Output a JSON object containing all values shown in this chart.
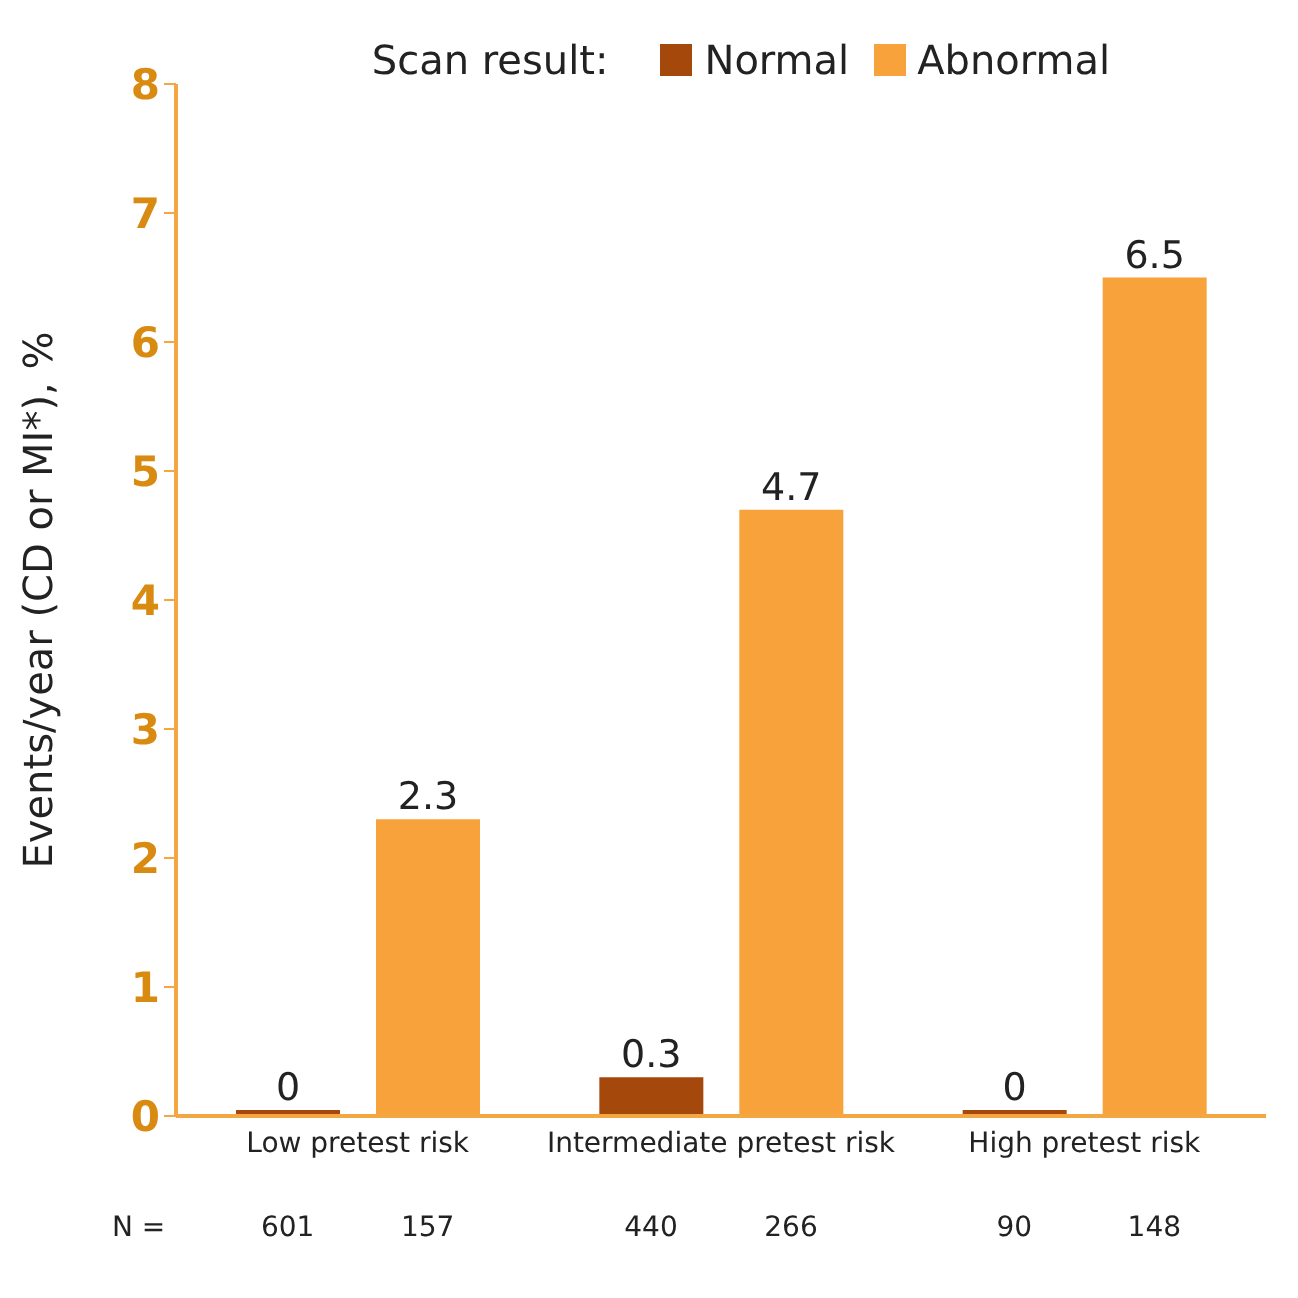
{
  "chart_data": {
    "type": "bar",
    "ylabel": "Events/year (CD or MI*), %",
    "legend_title": "Scan result:",
    "legend": "top",
    "categories": [
      "Low pretest risk",
      "Intermediate pretest risk",
      "High pretest risk"
    ],
    "series": [
      {
        "name": "Normal",
        "color": "#a5480c",
        "values": [
          0,
          0.3,
          0
        ]
      },
      {
        "name": "Abnormal",
        "color": "#f8a23b",
        "values": [
          2.3,
          4.7,
          6.5
        ]
      }
    ],
    "ylim": [
      0,
      8
    ],
    "yticks": [
      0,
      1,
      2,
      3,
      4,
      5,
      6,
      7,
      8
    ],
    "grid": false,
    "data_labels": true,
    "annotations": [
      "N =",
      "601",
      "157",
      "440",
      "266",
      "90",
      "148"
    ]
  }
}
